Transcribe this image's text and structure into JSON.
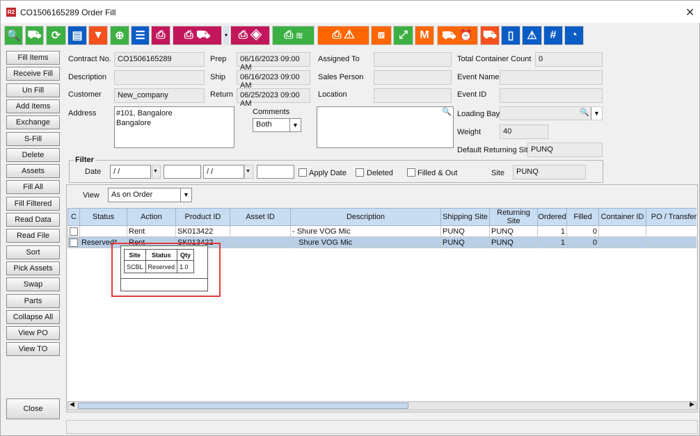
{
  "window": {
    "title": "CO1506165289 Order Fill",
    "logo": "R2"
  },
  "toolbar": [
    {
      "icon": "search-icon",
      "color": "#3cb043",
      "glyph": "🔍"
    },
    {
      "icon": "hand-truck-icon",
      "color": "#3cb043",
      "glyph": "⛟"
    },
    {
      "icon": "refresh-icon",
      "color": "#3cb043",
      "glyph": "⟳"
    },
    {
      "icon": "comment-icon",
      "color": "#0b5cc4",
      "glyph": "▤"
    },
    {
      "icon": "filter-icon",
      "color": "#f4511e",
      "glyph": "▼"
    },
    {
      "icon": "zoom-in-icon",
      "color": "#3cb043",
      "glyph": "⊕"
    },
    {
      "icon": "list-icon",
      "color": "#0b5cc4",
      "glyph": "☰"
    },
    {
      "icon": "print-icon",
      "color": "#c2185b",
      "glyph": "⎙"
    },
    {
      "icon": "print-delivery-icon",
      "color": "#c2185b",
      "glyph": "⎙ ⛟"
    },
    {
      "icon": "print-paint-icon",
      "color": "#c2185b",
      "glyph": "⎙ ◈"
    },
    {
      "icon": "print-stack-icon",
      "color": "#3cb043",
      "glyph": "⎙ ≋"
    },
    {
      "icon": "print-warning-icon",
      "color": "#ff6600",
      "glyph": "⎙ ⚠"
    },
    {
      "icon": "open-box-icon",
      "color": "#ff6600",
      "glyph": "⧈"
    },
    {
      "icon": "expand-icon",
      "color": "#3cb043",
      "glyph": "⤢"
    },
    {
      "icon": "box-m-icon",
      "color": "#ff6600",
      "glyph": "M"
    },
    {
      "icon": "truck-clock-icon",
      "color": "#ff6600",
      "glyph": "⛟ ⏰"
    },
    {
      "icon": "truck-icon",
      "color": "#f4511e",
      "glyph": "⛟"
    },
    {
      "icon": "book-icon",
      "color": "#0b5cc4",
      "glyph": "▯"
    },
    {
      "icon": "warning-eye-icon",
      "color": "#0b5cc4",
      "glyph": "⚠"
    },
    {
      "icon": "hash-icon",
      "color": "#0b5cc4",
      "glyph": "#"
    },
    {
      "icon": "gauge-icon",
      "color": "#0b5cc4",
      "glyph": "◔"
    }
  ],
  "sidebar": [
    "Fill Items",
    "Receive Fill",
    "Un Fill",
    "Add Items",
    "Exchange",
    "S-Fill",
    "Delete",
    "Assets",
    "Fill  All",
    "Fill Filtered",
    "Read Data",
    "Read File",
    "Sort",
    "Pick Assets",
    "Swap",
    "Parts",
    "Collapse All",
    "View PO",
    "View TO"
  ],
  "close_label": "Close",
  "form": {
    "contract_no_label": "Contract No.",
    "contract_no": "CO1506165289",
    "description_label": "Description",
    "description": "",
    "customer_label": "Customer",
    "customer": "New_company",
    "address_label": "Address",
    "address": "#101, Bangalore\nBangalore",
    "prep_label": "Prep",
    "prep": "06/16/2023 09:00 AM",
    "ship_label": "Ship",
    "ship": "06/16/2023 09:00 AM",
    "return_label": "Return",
    "return": "06/25/2023 09:00 AM",
    "comments_label": "Comments",
    "comments_option": "Both",
    "assigned_to_label": "Assigned To",
    "sales_person_label": "Sales Person",
    "location_label": "Location",
    "total_container_count_label": "Total Container Count",
    "total_container_count": "0",
    "event_name_label": "Event Name",
    "event_id_label": "Event ID",
    "loading_bay_label": "Loading Bay",
    "weight_label": "Weight",
    "weight": "40",
    "default_returning_site_label": "Default Returning Site",
    "default_returning_site": "PUNQ"
  },
  "filter": {
    "title": "Filter",
    "date_label": "Date",
    "date_from": " / /",
    "date_to": " / /",
    "apply_date": "Apply Date",
    "deleted": "Deleted",
    "filled_out": "Filled & Out",
    "site_label": "Site",
    "site": "PUNQ"
  },
  "view": {
    "label": "View",
    "value": "As on Order"
  },
  "table": {
    "columns": [
      "C",
      "Status",
      "Action",
      "Product ID",
      "Asset ID",
      "Description",
      "Shipping Site",
      "Returning Site",
      "Ordered",
      "Filled",
      "Container ID",
      "PO / Transfer"
    ],
    "rows": [
      [
        "",
        "",
        "Rent",
        "SK013422",
        "",
        "- Shure VOG Mic",
        "PUNQ",
        "PUNQ",
        "1",
        "0",
        "",
        ""
      ],
      [
        "",
        "Reserved*",
        "Rent",
        "SK013422",
        "",
        "   Shure VOG Mic",
        "PUNQ",
        "PUNQ",
        "1",
        "0",
        "",
        ""
      ]
    ]
  },
  "popup": {
    "columns": [
      "Site",
      "Status",
      "Qty"
    ],
    "rows": [
      [
        "SCBL",
        "Reserved",
        "1.0"
      ]
    ]
  }
}
